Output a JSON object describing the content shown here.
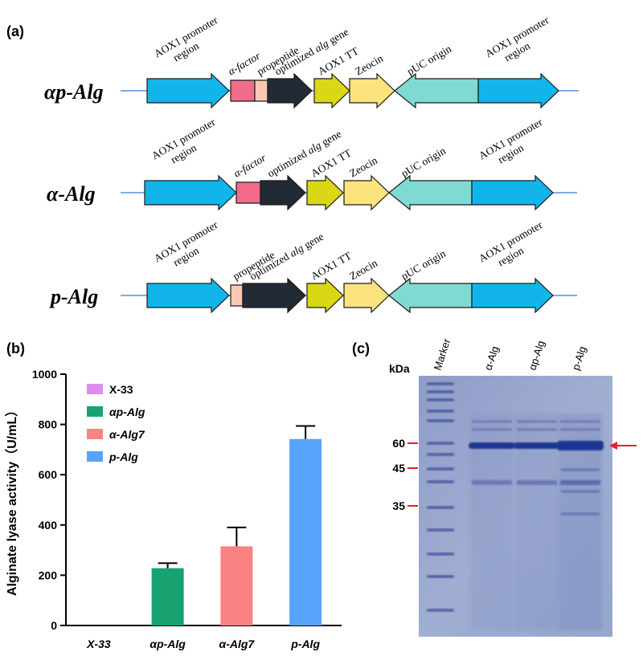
{
  "panels": {
    "a": "(a)",
    "b": "(b)",
    "c": "(c)"
  },
  "constructs": [
    {
      "name": "αp-Alg",
      "segments": [
        {
          "type": "arrow",
          "label": "AOX1 promoter region",
          "color": "#12b5ea"
        },
        {
          "type": "box",
          "label": "α-factor",
          "color": "#f26b8a"
        },
        {
          "type": "box",
          "label": "propeptide",
          "color": "#f9c8b4"
        },
        {
          "type": "arrow",
          "label": "optimized alg gene",
          "color": "#222a36"
        },
        {
          "type": "arrow",
          "label": "AOX1 TT",
          "color": "#d9d716"
        },
        {
          "type": "arrow",
          "label": "Zeocin",
          "color": "#fce37d"
        },
        {
          "type": "larrow",
          "label": "pUC origin",
          "color": "#7fdad3"
        },
        {
          "type": "arrow",
          "label": "AOX1 promoter region",
          "color": "#12b5ea"
        }
      ]
    },
    {
      "name": "α-Alg",
      "segments": [
        {
          "type": "arrow",
          "label": "AOX1 promoter region",
          "color": "#12b5ea"
        },
        {
          "type": "box",
          "label": "α-factor",
          "color": "#f26b8a"
        },
        {
          "type": "arrow",
          "label": "optimized alg gene",
          "color": "#222a36"
        },
        {
          "type": "arrow",
          "label": "AOX1 TT",
          "color": "#d9d716"
        },
        {
          "type": "arrow",
          "label": "Zeocin",
          "color": "#fce37d"
        },
        {
          "type": "larrow",
          "label": "pUC origin",
          "color": "#7fdad3"
        },
        {
          "type": "arrow",
          "label": "AOX1 promoter region",
          "color": "#12b5ea"
        }
      ]
    },
    {
      "name": "p-Alg",
      "segments": [
        {
          "type": "arrow",
          "label": "AOX1 promoter region",
          "color": "#12b5ea"
        },
        {
          "type": "box",
          "label": "propeptide",
          "color": "#f9c8b4"
        },
        {
          "type": "arrow",
          "label": "optimized alg gene",
          "color": "#222a36"
        },
        {
          "type": "arrow",
          "label": "AOX1 TT",
          "color": "#d9d716"
        },
        {
          "type": "arrow",
          "label": "Zeocin",
          "color": "#fce37d"
        },
        {
          "type": "larrow",
          "label": "pUC origin",
          "color": "#7fdad3"
        },
        {
          "type": "arrow",
          "label": "AOX1 promoter region",
          "color": "#12b5ea"
        }
      ]
    }
  ],
  "chart_data": {
    "type": "bar",
    "categories": [
      "X-33",
      "αp-Alg",
      "α-Alg7",
      "p-Alg"
    ],
    "values": [
      0,
      228,
      315,
      742
    ],
    "errors": [
      0,
      20,
      75,
      52
    ],
    "colors": [
      "#d98ef0",
      "#18a270",
      "#fb8283",
      "#57a3fb"
    ],
    "legend": [
      "X-33",
      "αp-Alg",
      "α-Alg7",
      "p-Alg"
    ],
    "legend_position": "top-left",
    "ylabel": "Alginate lyase activity（U/mL）",
    "ylim": [
      0,
      1000
    ],
    "yticks": [
      0,
      200,
      400,
      600,
      800,
      1000
    ],
    "grid": false
  },
  "gel": {
    "unit": "kDa",
    "lanes": [
      "Marker",
      "α-Alg",
      "αp-Alg",
      "p-Alg"
    ],
    "markers": [
      "60",
      "45",
      "35"
    ],
    "marker_color": "#e8201e",
    "band_arrow_color": "#e8201e"
  }
}
